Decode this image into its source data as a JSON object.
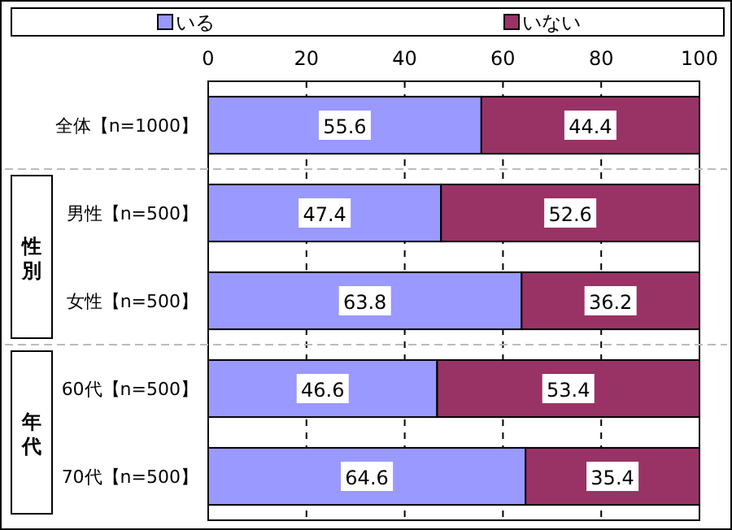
{
  "chart_data": {
    "type": "bar",
    "orientation": "horizontal",
    "stacked": true,
    "categories": [
      "全体【n=1000】",
      "男性【n=500】",
      "女性【n=500】",
      "60代【n=500】",
      "70代【n=500】"
    ],
    "series": [
      {
        "name": "いる",
        "color": "#9999ff",
        "values": [
          55.6,
          47.4,
          63.8,
          46.6,
          64.6
        ]
      },
      {
        "name": "いない",
        "color": "#993366",
        "values": [
          44.4,
          52.6,
          36.2,
          53.4,
          35.4
        ]
      }
    ],
    "xlim": [
      0,
      100
    ],
    "xticks": [
      0,
      20,
      40,
      60,
      80,
      100
    ],
    "grid": "x",
    "legend": "top",
    "data_labels": true,
    "annotations": [
      "性別",
      "年代"
    ]
  }
}
